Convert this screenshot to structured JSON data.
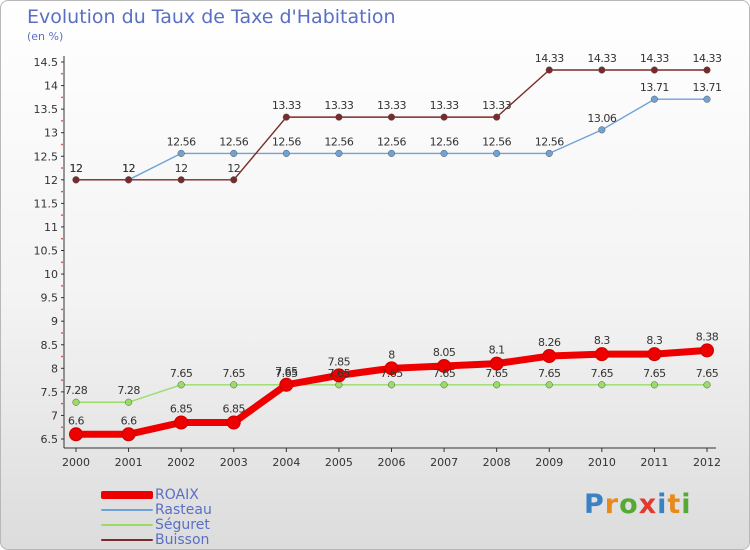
{
  "title": "Evolution du Taux de Taxe d'Habitation",
  "unit_label": "(en %)",
  "logo": {
    "text": "Proxiti",
    "colors": [
      "#3b82c4",
      "#e88a1a",
      "#55aa33",
      "#e03a2f",
      "#3b82c4",
      "#e88a1a",
      "#55aa33"
    ]
  },
  "chart_data": {
    "type": "line",
    "title": "Evolution du Taux de Taxe d'Habitation",
    "ylabel": "(en %)",
    "x": [
      "2000",
      "2001",
      "2002",
      "2003",
      "2004",
      "2005",
      "2006",
      "2007",
      "2008",
      "2009",
      "2010",
      "2011",
      "2012"
    ],
    "ylim": [
      6.5,
      14.5
    ],
    "yticks": [
      "6.5",
      "7",
      "7.5",
      "8",
      "8.5",
      "9",
      "9.5",
      "10",
      "10.5",
      "11",
      "11.5",
      "12",
      "12.5",
      "13",
      "13.5",
      "14",
      "14.5"
    ],
    "legend_position": "bottom-left",
    "series": [
      {
        "name": "ROAIX",
        "color": "#ee0000",
        "values": [
          6.6,
          6.6,
          6.85,
          6.85,
          7.65,
          7.85,
          8,
          8.05,
          8.1,
          8.26,
          8.3,
          8.3,
          8.38
        ],
        "labels": [
          "6.6",
          "6.6",
          "6.85",
          "6.85",
          "7.65",
          "7.85",
          "8",
          "8.05",
          "8.1",
          "8.26",
          "8.3",
          "8.3",
          "8.38"
        ]
      },
      {
        "name": "Rasteau",
        "color": "#6fa3d8",
        "values": [
          12,
          12,
          12.56,
          12.56,
          12.56,
          12.56,
          12.56,
          12.56,
          12.56,
          12.56,
          13.06,
          13.71,
          13.71
        ],
        "labels": [
          "12",
          "12",
          "12.56",
          "12.56",
          "12.56",
          "12.56",
          "12.56",
          "12.56",
          "12.56",
          "12.56",
          "13.06",
          "13.71",
          "13.71"
        ]
      },
      {
        "name": "Séguret",
        "color": "#99dd66",
        "values": [
          7.28,
          7.28,
          7.65,
          7.65,
          7.65,
          7.65,
          7.65,
          7.65,
          7.65,
          7.65,
          7.65,
          7.65,
          7.65
        ],
        "labels": [
          "7.28",
          "7.28",
          "7.65",
          "7.65",
          "7.65",
          "7.65",
          "7.65",
          "7.65",
          "7.65",
          "7.65",
          "7.65",
          "7.65",
          "7.65"
        ]
      },
      {
        "name": "Buisson",
        "color": "#7a2a2a",
        "values": [
          12,
          12,
          12,
          12,
          13.33,
          13.33,
          13.33,
          13.33,
          13.33,
          14.33,
          14.33,
          14.33,
          14.33
        ],
        "labels": [
          "12",
          "12",
          "12",
          "12",
          "13.33",
          "13.33",
          "13.33",
          "13.33",
          "13.33",
          "14.33",
          "14.33",
          "14.33",
          "14.33"
        ]
      }
    ]
  }
}
